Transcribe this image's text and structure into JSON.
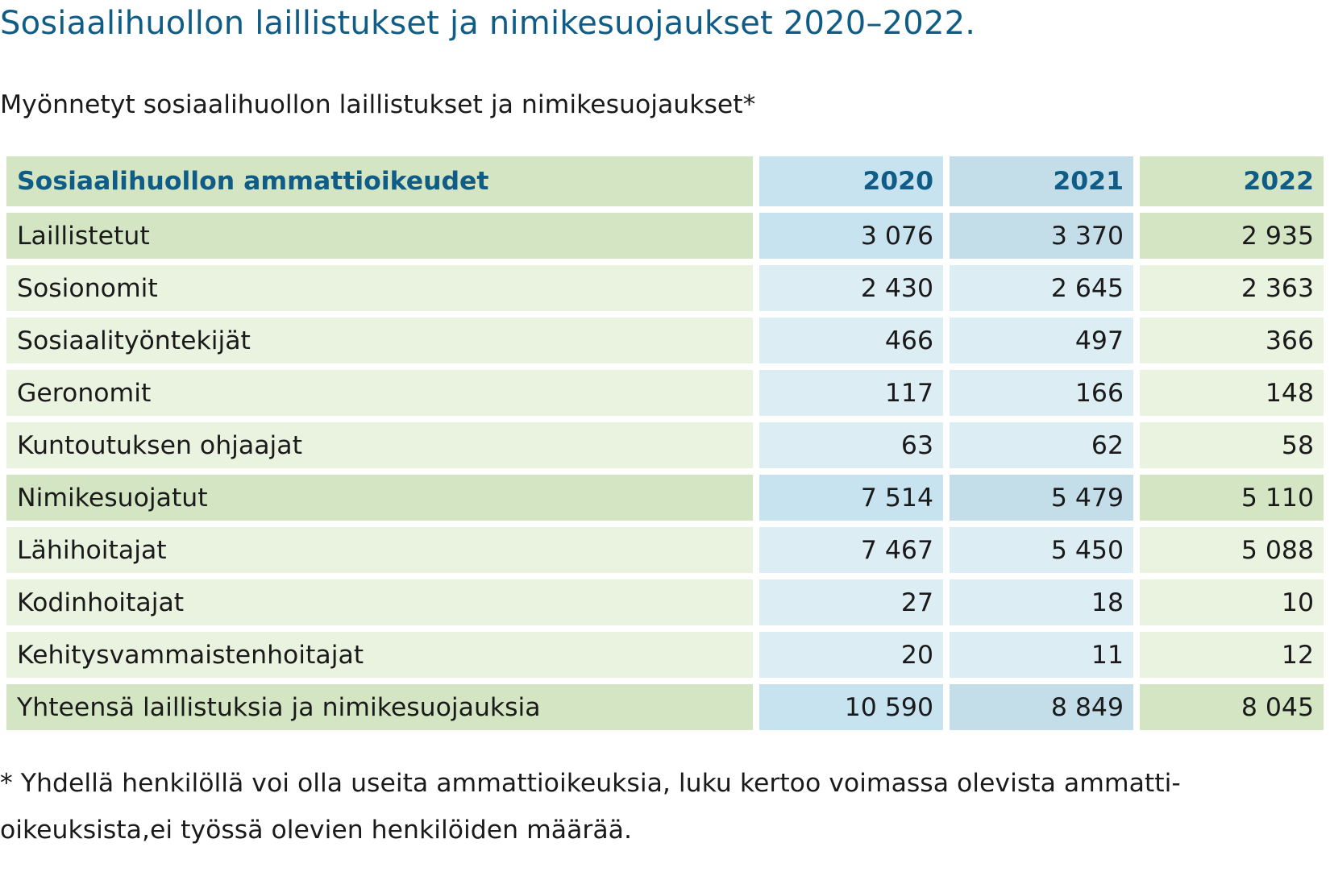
{
  "title": "Sosiaalihuollon laillistukset ja nimikesuojaukset 2020–2022.",
  "subtitle": "Myönnetyt sosiaalihuollon laillistukset ja nimikesuojaukset*",
  "table": {
    "headers": [
      "Sosiaalihuollon ammattioikeudet",
      "2020",
      "2021",
      "2022"
    ],
    "rows": [
      {
        "label": "Laillistetut",
        "v2020": "3 076",
        "v2021": "3 370",
        "v2022": "2 935"
      },
      {
        "label": "Sosionomit",
        "v2020": "2 430",
        "v2021": "2 645",
        "v2022": "2 363"
      },
      {
        "label": "Sosiaalityöntekijät",
        "v2020": "466",
        "v2021": "497",
        "v2022": "366"
      },
      {
        "label": "Geronomit",
        "v2020": "117",
        "v2021": "166",
        "v2022": "148"
      },
      {
        "label": "Kuntoutuksen ohjaajat",
        "v2020": "63",
        "v2021": "62",
        "v2022": "58"
      },
      {
        "label": "Nimikesuojatut",
        "v2020": "7 514",
        "v2021": "5 479",
        "v2022": "5 110"
      },
      {
        "label": "Lähihoitajat",
        "v2020": "7 467",
        "v2021": "5 450",
        "v2022": "5 088"
      },
      {
        "label": "Kodinhoitajat",
        "v2020": "27",
        "v2021": "18",
        "v2022": "10"
      },
      {
        "label": "Kehitysvammaistenhoitajat",
        "v2020": "20",
        "v2021": "11",
        "v2022": "12"
      },
      {
        "label": "Yhteensä laillistuksia ja nimikesuojauksia",
        "v2020": "10 590",
        "v2021": "8 849",
        "v2022": "8 045"
      }
    ]
  },
  "footnote": {
    "line1": "* Yhdellä henkilöllä voi olla useita ammattioikeuksia, luku kertoo voimassa olevista ammatti-",
    "line2": "oikeuksista,ei työssä olevien henkilöiden määrää."
  },
  "colors": {
    "title_blue": "#0f5d86",
    "green_dark": "#d3e5c3",
    "green_light": "#eaf2e0",
    "blue_dark": "#c6e3ef",
    "blue_light": "#dcedf4"
  }
}
